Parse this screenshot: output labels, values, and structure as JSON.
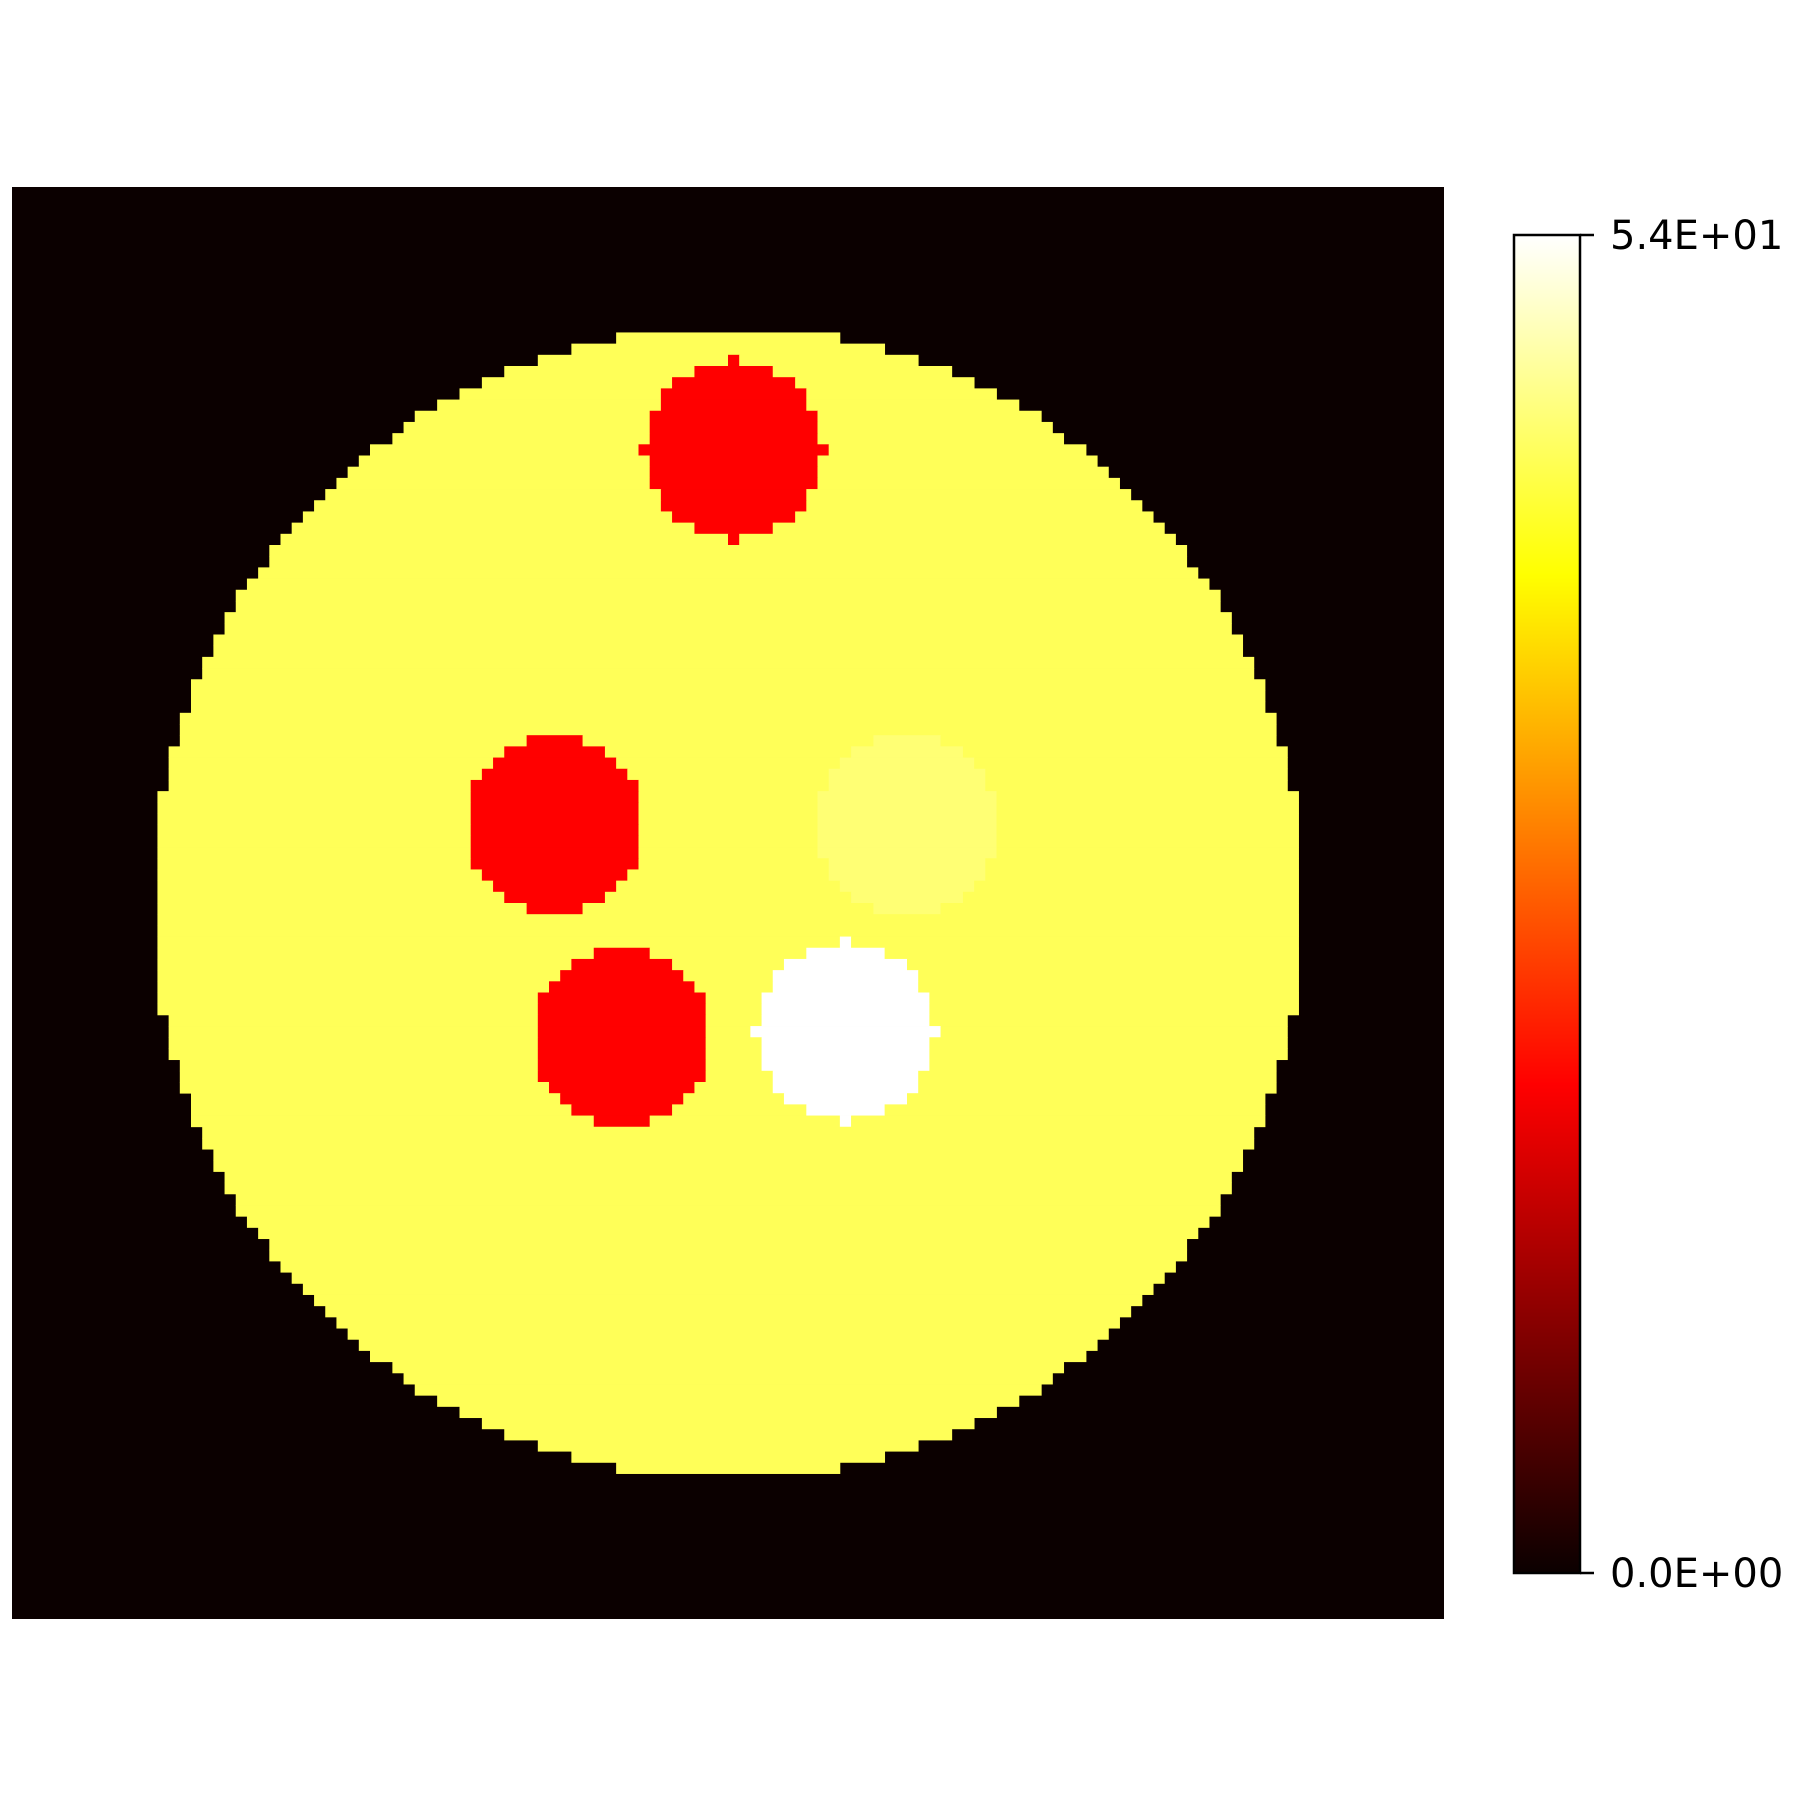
{
  "chart_data": {
    "type": "heatmap",
    "title": "",
    "xlabel": "",
    "ylabel": "",
    "axes_visible": false,
    "grid": false,
    "colormap": "hot",
    "grid_size": [
      128,
      128
    ],
    "background_value": 0.0,
    "phantom": {
      "shape": "disk",
      "center": [
        64,
        64
      ],
      "radius": 51.5,
      "value": 45.0
    },
    "inserts": [
      {
        "name": "hot-insert",
        "center": [
          74.5,
          75.5
        ],
        "radius": 8,
        "value": 54.0
      },
      {
        "name": "cold-insert-top",
        "center": [
          64.5,
          23.5
        ],
        "radius": 8,
        "value": 19.0
      },
      {
        "name": "cold-insert-left",
        "center": [
          48.5,
          57.0
        ],
        "radius": 8,
        "value": 19.0
      },
      {
        "name": "cold-insert-bottom",
        "center": [
          54.5,
          76.0
        ],
        "radius": 8,
        "value": 19.0
      },
      {
        "name": "warm-insert-right",
        "center": [
          80.0,
          57.0
        ],
        "radius": 8,
        "value": 46.5
      }
    ],
    "colorbar": {
      "position": "right",
      "vmin": 0.0,
      "vmax": 54.0,
      "ticks": [
        {
          "value": 54.0,
          "label": "5.4E+01"
        },
        {
          "value": 0.0,
          "label": "0.0E+00"
        }
      ]
    }
  }
}
